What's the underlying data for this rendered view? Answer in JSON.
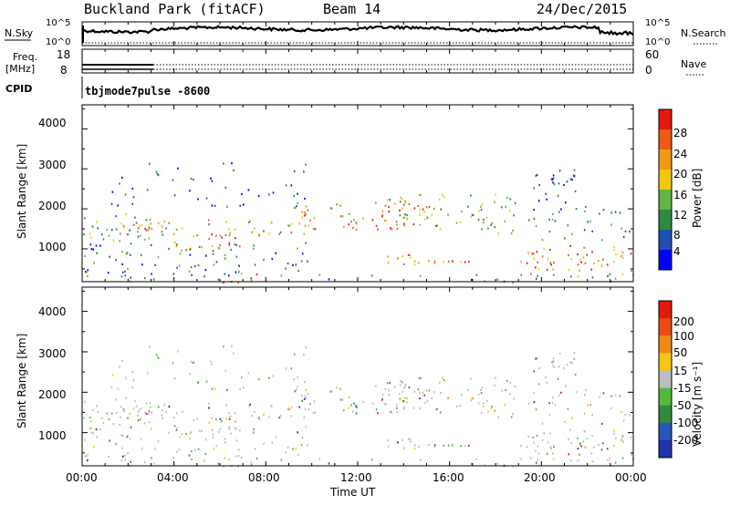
{
  "header": {
    "station": "Buckland Park (fitACF)",
    "beam": "Beam 14",
    "date": "24/Dec/2015"
  },
  "noise_panel": {
    "left_label": "N.Sky",
    "left_ticks": [
      "10^5",
      "10^0"
    ],
    "right_label": "N.Search",
    "right_ticks": [
      "10^5",
      "10^0"
    ]
  },
  "freq_panel": {
    "left_label_top": "Freq.",
    "left_label_unit": "[MHz]",
    "left_ticks": [
      "18",
      "8"
    ],
    "right_label": "Nave",
    "right_ticks": [
      "60",
      "0"
    ]
  },
  "cpid_panel": {
    "label": "CPID",
    "value": "tbjmode7pulse -8600"
  },
  "x_axis": {
    "label": "Time UT",
    "ticks": [
      "00:00",
      "04:00",
      "08:00",
      "12:00",
      "16:00",
      "20:00",
      "00:00"
    ]
  },
  "power_panel": {
    "ylabel": "Slant Range [km]",
    "yticks": [
      "4000",
      "3000",
      "2000",
      "1000"
    ],
    "colorbar_label": "Power [dB]",
    "colorbar_ticks": [
      "28",
      "24",
      "20",
      "16",
      "12",
      "8",
      "4"
    ],
    "colors": [
      "#0000ff",
      "#1f4fb0",
      "#2e8a3c",
      "#66b346",
      "#f2c80f",
      "#f09a14",
      "#ec5a14",
      "#e21a0e"
    ]
  },
  "velocity_panel": {
    "ylabel": "Slant Range [km]",
    "yticks": [
      "4000",
      "3000",
      "2000",
      "1000"
    ],
    "colorbar_label": "Velocity [m s⁻¹]",
    "colorbar_ticks": [
      "200",
      "100",
      "50",
      "15",
      "-15",
      "-50",
      "-100",
      "-200"
    ],
    "colors": [
      "#2233aa",
      "#2a55b8",
      "#2e8a3c",
      "#55b83e",
      "#bdbdbd",
      "#f2c80f",
      "#f08a14",
      "#ec4a14",
      "#e21a0e"
    ]
  },
  "chart_data": {
    "type": "heatmap",
    "x_range_hours": [
      0,
      24
    ],
    "y_range_km": [
      180,
      4600
    ],
    "power_regions_km": [
      {
        "t": [
          0,
          10
        ],
        "r": [
          1300,
          1700
        ],
        "level": "16-24"
      },
      {
        "t": [
          10,
          15
        ],
        "r": [
          1500,
          2300
        ],
        "level": "20-28"
      },
      {
        "t": [
          12,
          17
        ],
        "r": [
          600,
          900
        ],
        "level": "20-28"
      },
      {
        "t": [
          20,
          24
        ],
        "r": [
          400,
          1100
        ],
        "level": "24-28"
      },
      {
        "t": [
          19,
          22
        ],
        "r": [
          1700,
          2300
        ],
        "level": "16-24"
      }
    ]
  }
}
